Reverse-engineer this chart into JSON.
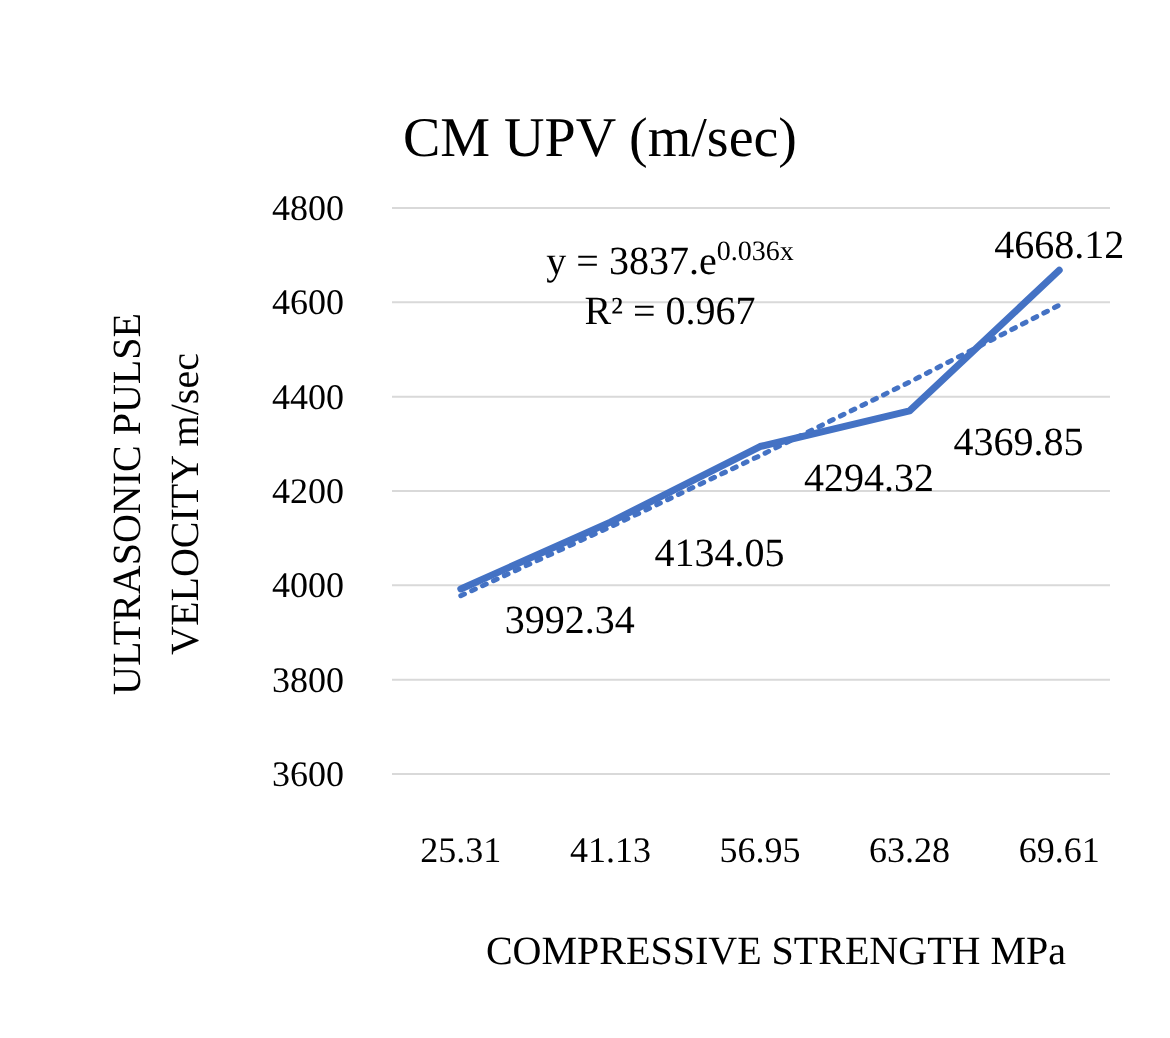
{
  "chart_data": {
    "type": "line",
    "title": "CM UPV (m/sec)",
    "xlabel": "COMPRESSIVE STRENGTH MPa",
    "ylabel": "ULTRASONIC PULSE VELOCITY m/sec",
    "categories": [
      "25.31",
      "41.13",
      "56.95",
      "63.28",
      "69.61"
    ],
    "series": [
      {
        "color": "#4472c4",
        "values": [
          3992.34,
          4134.05,
          4294.32,
          4369.85,
          4668.12
        ],
        "data_labels": true,
        "line_style": "solid"
      },
      {
        "type": "line",
        "color": "#4472c4",
        "values": [
          3978,
          4124,
          4275,
          4431,
          4594
        ],
        "line_style": "dotted"
      }
    ],
    "ylim": [
      3600,
      4800
    ],
    "yticks": [
      3600,
      3800,
      4000,
      4200,
      4400,
      4600,
      4800
    ],
    "grid": "y",
    "annotations": [
      "y = 3837.e$^{0.036x}$",
      "R² = 0.967"
    ]
  }
}
